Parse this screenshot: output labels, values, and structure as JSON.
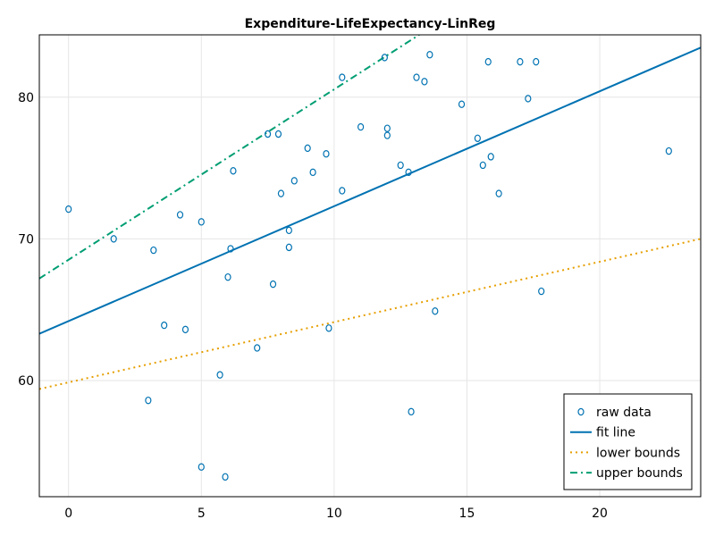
{
  "chart_data": {
    "type": "scatter",
    "title": "Expenditure-LifeExpectancy-LinReg",
    "xlabel": "",
    "ylabel": "",
    "xlim": [
      -1.1,
      23.8
    ],
    "ylim": [
      51.8,
      84.4
    ],
    "xticks": [
      0,
      5,
      10,
      15,
      20
    ],
    "yticks": [
      60,
      70,
      80
    ],
    "grid": true,
    "legend_position": "bottom-right",
    "colors": {
      "raw": "#0072b2",
      "fit": "#0072b2",
      "lower": "#e69f00",
      "upper": "#009e73"
    },
    "series": [
      {
        "name": "raw data",
        "kind": "scatter",
        "points": [
          [
            0.0,
            72.1
          ],
          [
            1.7,
            70.0
          ],
          [
            3.0,
            58.6
          ],
          [
            3.2,
            69.2
          ],
          [
            3.6,
            63.9
          ],
          [
            4.2,
            71.7
          ],
          [
            4.4,
            63.6
          ],
          [
            5.0,
            71.2
          ],
          [
            5.0,
            53.9
          ],
          [
            5.7,
            60.4
          ],
          [
            5.9,
            53.2
          ],
          [
            6.0,
            67.3
          ],
          [
            6.1,
            69.3
          ],
          [
            6.2,
            74.8
          ],
          [
            7.1,
            62.3
          ],
          [
            7.5,
            77.4
          ],
          [
            7.7,
            66.8
          ],
          [
            7.9,
            77.4
          ],
          [
            8.0,
            73.2
          ],
          [
            8.3,
            70.6
          ],
          [
            8.3,
            69.4
          ],
          [
            8.5,
            74.1
          ],
          [
            9.0,
            76.4
          ],
          [
            9.2,
            74.7
          ],
          [
            9.7,
            76.0
          ],
          [
            9.8,
            63.7
          ],
          [
            10.3,
            73.4
          ],
          [
            10.3,
            81.4
          ],
          [
            11.0,
            77.9
          ],
          [
            11.9,
            82.8
          ],
          [
            12.0,
            77.8
          ],
          [
            12.0,
            77.3
          ],
          [
            12.5,
            75.2
          ],
          [
            12.8,
            74.7
          ],
          [
            12.9,
            57.8
          ],
          [
            13.1,
            81.4
          ],
          [
            13.4,
            81.1
          ],
          [
            13.6,
            83.0
          ],
          [
            13.8,
            64.9
          ],
          [
            14.8,
            79.5
          ],
          [
            15.4,
            77.1
          ],
          [
            15.6,
            75.2
          ],
          [
            15.8,
            82.5
          ],
          [
            15.9,
            75.8
          ],
          [
            16.2,
            73.2
          ],
          [
            17.0,
            82.5
          ],
          [
            17.3,
            79.9
          ],
          [
            17.6,
            82.5
          ],
          [
            17.8,
            66.3
          ],
          [
            22.6,
            76.2
          ]
        ]
      },
      {
        "name": "fit line",
        "kind": "line",
        "dash": "solid",
        "points": [
          [
            -1.1,
            63.3
          ],
          [
            23.8,
            83.5
          ]
        ]
      },
      {
        "name": "lower bounds",
        "kind": "line",
        "dash": "dot",
        "points": [
          [
            -1.1,
            59.4
          ],
          [
            23.8,
            70.0
          ]
        ]
      },
      {
        "name": "upper bounds",
        "kind": "line",
        "dash": "dashdot",
        "points": [
          [
            -1.1,
            67.2
          ],
          [
            13.2,
            84.4
          ]
        ]
      }
    ]
  }
}
